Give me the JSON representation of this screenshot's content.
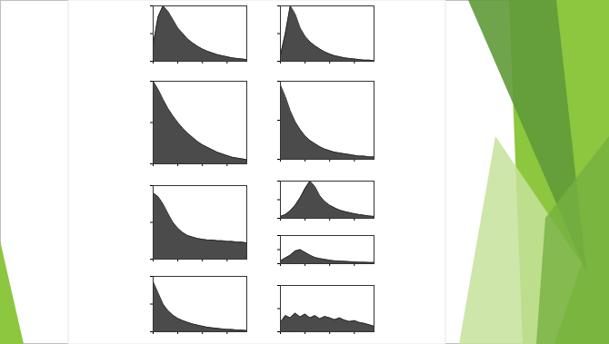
{
  "chart_data": [
    {
      "type": "area",
      "x": [
        0,
        1,
        2,
        3,
        4,
        5,
        6,
        7,
        8,
        9,
        10,
        11,
        12,
        13,
        14,
        15,
        16,
        17,
        18,
        19
      ],
      "values": [
        0.3,
        0.8,
        1,
        0.9,
        0.75,
        0.6,
        0.5,
        0.4,
        0.33,
        0.27,
        0.22,
        0.18,
        0.15,
        0.12,
        0.1,
        0.08,
        0.06,
        0.05,
        0.04,
        0.03
      ],
      "xlim": [
        0,
        19
      ],
      "ylim": [
        0,
        1
      ],
      "xticks": [
        0,
        5,
        10,
        15
      ],
      "yticks": [
        0,
        0.5,
        1
      ],
      "tick_labels": false,
      "color": "#2b2b2b"
    },
    {
      "type": "area",
      "x": [
        0,
        1,
        2,
        3,
        4,
        5,
        6,
        7,
        8,
        9,
        10,
        11,
        12,
        13,
        14,
        15,
        16,
        17,
        18,
        19
      ],
      "values": [
        0.1,
        0.5,
        1,
        0.85,
        0.6,
        0.45,
        0.35,
        0.28,
        0.22,
        0.17,
        0.13,
        0.1,
        0.08,
        0.06,
        0.05,
        0.04,
        0.03,
        0.02,
        0.02,
        0.01
      ],
      "xlim": [
        0,
        19
      ],
      "ylim": [
        0,
        1
      ],
      "xticks": [
        0,
        5,
        10,
        15
      ],
      "yticks": [
        0,
        0.5,
        1
      ],
      "tick_labels": false,
      "color": "#2b2b2b"
    },
    {
      "type": "area",
      "x": [
        0,
        1,
        2,
        3,
        4,
        5,
        6,
        7,
        8,
        9,
        10,
        11,
        12,
        13,
        14,
        15,
        16,
        17,
        18,
        19
      ],
      "values": [
        1,
        0.9,
        0.78,
        0.67,
        0.58,
        0.5,
        0.43,
        0.37,
        0.32,
        0.27,
        0.23,
        0.2,
        0.17,
        0.14,
        0.12,
        0.1,
        0.08,
        0.07,
        0.06,
        0.05
      ],
      "xlim": [
        0,
        19
      ],
      "ylim": [
        0,
        1
      ],
      "xticks": [
        0,
        5,
        10,
        15
      ],
      "yticks": [
        0,
        0.5,
        1
      ],
      "tick_labels": false,
      "color": "#2b2b2b"
    },
    {
      "type": "area",
      "x": [
        0,
        1,
        2,
        3,
        4,
        5,
        6,
        7,
        8,
        9,
        10,
        11,
        12,
        13,
        14,
        15,
        16,
        17,
        18,
        19
      ],
      "values": [
        0.95,
        0.8,
        0.62,
        0.48,
        0.38,
        0.3,
        0.24,
        0.2,
        0.16,
        0.13,
        0.11,
        0.09,
        0.08,
        0.07,
        0.06,
        0.05,
        0.04,
        0.04,
        0.03,
        0.03
      ],
      "xlim": [
        0,
        19
      ],
      "ylim": [
        0,
        1
      ],
      "xticks": [
        0,
        5,
        10,
        15
      ],
      "yticks": [
        0,
        0.5,
        1
      ],
      "tick_labels": false,
      "color": "#2b2b2b"
    },
    {
      "type": "area",
      "x": [
        0,
        1,
        2,
        3,
        4,
        5,
        6,
        7,
        8,
        9,
        10,
        11,
        12,
        13,
        14,
        15,
        16,
        17,
        18,
        19
      ],
      "values": [
        0.9,
        0.85,
        0.75,
        0.62,
        0.5,
        0.42,
        0.36,
        0.32,
        0.3,
        0.28,
        0.27,
        0.26,
        0.26,
        0.25,
        0.25,
        0.24,
        0.24,
        0.23,
        0.23,
        0.22
      ],
      "xlim": [
        0,
        19
      ],
      "ylim": [
        0,
        1
      ],
      "xticks": [
        0,
        5,
        10,
        15
      ],
      "yticks": [
        0,
        0.5,
        1
      ],
      "tick_labels": false,
      "color": "#2b2b2b"
    },
    {
      "type": "area",
      "x": [
        0,
        1,
        2,
        3,
        4,
        5,
        6,
        7,
        8,
        9,
        10,
        11,
        12,
        13,
        14,
        15,
        16,
        17,
        18,
        19
      ],
      "values": [
        0.05,
        0.1,
        0.2,
        0.35,
        0.55,
        0.8,
        1,
        0.85,
        0.6,
        0.45,
        0.35,
        0.28,
        0.22,
        0.18,
        0.15,
        0.12,
        0.1,
        0.08,
        0.06,
        0.05
      ],
      "xlim": [
        0,
        19
      ],
      "ylim": [
        0,
        1
      ],
      "xticks": [
        0,
        5,
        10,
        15
      ],
      "yticks": [
        0,
        0.5,
        1
      ],
      "tick_labels": false,
      "color": "#2b2b2b"
    },
    {
      "type": "area",
      "x": [
        0,
        1,
        2,
        3,
        4,
        5,
        6,
        7,
        8,
        9,
        10,
        11,
        12,
        13,
        14,
        15,
        16,
        17,
        18,
        19
      ],
      "values": [
        0.9,
        0.7,
        0.5,
        0.38,
        0.3,
        0.24,
        0.2,
        0.17,
        0.14,
        0.12,
        0.1,
        0.08,
        0.07,
        0.06,
        0.05,
        0.04,
        0.04,
        0.03,
        0.03,
        0.02
      ],
      "xlim": [
        0,
        19
      ],
      "ylim": [
        0,
        1
      ],
      "xticks": [
        0,
        5,
        10,
        15
      ],
      "yticks": [
        0,
        0.5,
        1
      ],
      "tick_labels": false,
      "color": "#2b2b2b"
    },
    {
      "type": "area",
      "x": [
        0,
        1,
        2,
        3,
        4,
        5,
        6,
        7,
        8,
        9,
        10,
        11,
        12,
        13,
        14,
        15,
        16,
        17,
        18,
        19
      ],
      "values": [
        0.1,
        0.2,
        0.3,
        0.45,
        0.5,
        0.4,
        0.3,
        0.22,
        0.18,
        0.15,
        0.12,
        0.1,
        0.09,
        0.08,
        0.07,
        0.06,
        0.05,
        0.05,
        0.04,
        0.04
      ],
      "xlim": [
        0,
        19
      ],
      "ylim": [
        0,
        1
      ],
      "xticks": [
        0,
        5,
        10,
        15
      ],
      "yticks": [
        0,
        0.5,
        1
      ],
      "tick_labels": false,
      "color": "#2b2b2b"
    },
    {
      "type": "area",
      "x": [
        0,
        1,
        2,
        3,
        4,
        5,
        6,
        7,
        8,
        9,
        10,
        11,
        12,
        13,
        14,
        15,
        16,
        17,
        18,
        19
      ],
      "values": [
        0.2,
        0.35,
        0.3,
        0.4,
        0.32,
        0.38,
        0.3,
        0.35,
        0.28,
        0.33,
        0.3,
        0.26,
        0.3,
        0.25,
        0.22,
        0.24,
        0.2,
        0.18,
        0.15,
        0.12
      ],
      "xlim": [
        0,
        19
      ],
      "ylim": [
        0,
        1
      ],
      "xticks": [
        0,
        5,
        10,
        15
      ],
      "yticks": [
        0,
        0.5,
        1
      ],
      "tick_labels": false,
      "color": "#2b2b2b"
    }
  ]
}
